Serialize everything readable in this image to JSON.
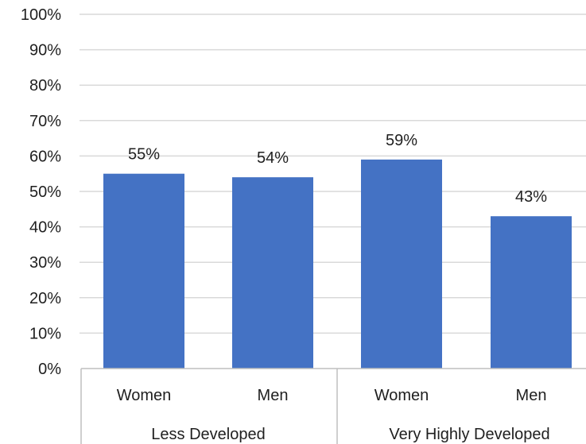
{
  "chart_data": {
    "type": "bar",
    "categories": [
      "Women",
      "Men",
      "Women",
      "Men"
    ],
    "groups": [
      {
        "label": "Less Developed",
        "categories": [
          "Women",
          "Men"
        ]
      },
      {
        "label": "Very Highly Developed",
        "categories": [
          "Women",
          "Men"
        ]
      }
    ],
    "values": [
      55,
      54,
      59,
      43
    ],
    "data_labels": [
      "55%",
      "54%",
      "59%",
      "43%"
    ],
    "ylim": [
      0,
      100
    ],
    "y_ticks": [
      0,
      10,
      20,
      30,
      40,
      50,
      60,
      70,
      80,
      90,
      100
    ],
    "y_tick_labels": [
      "0%",
      "10%",
      "20%",
      "30%",
      "40%",
      "50%",
      "60%",
      "70%",
      "80%",
      "90%",
      "100%"
    ],
    "grid": true,
    "legend": "none",
    "colors": {
      "bar": "#4472c4",
      "grid": "#d9d9d9",
      "axis": "#bfbfbf",
      "text": "#1f1f1f"
    }
  }
}
